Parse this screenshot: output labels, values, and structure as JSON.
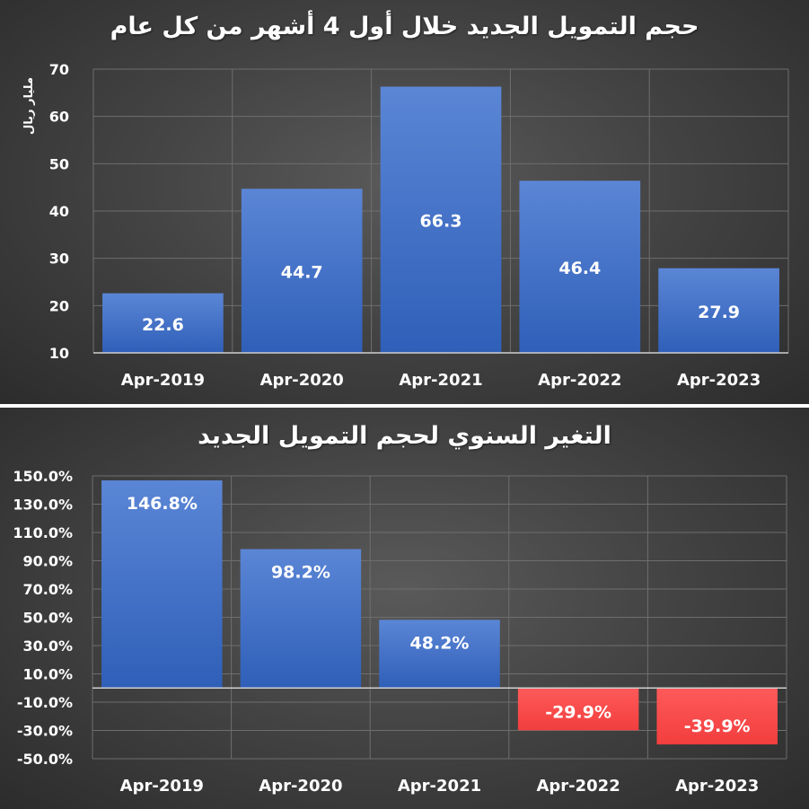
{
  "chart_data": [
    {
      "type": "bar",
      "title": "حجم التمويل الجديد خلال أول 4 أشهر من كل عام",
      "ylabel": "مليار ريال",
      "xlabel": "",
      "categories": [
        "Apr-2019",
        "Apr-2020",
        "Apr-2021",
        "Apr-2022",
        "Apr-2023"
      ],
      "values": [
        22.6,
        44.7,
        66.3,
        46.4,
        27.9
      ],
      "value_labels": [
        "22.6",
        "44.7",
        "66.3",
        "46.4",
        "27.9"
      ],
      "ylim": [
        10,
        70
      ],
      "yticks": [
        "10",
        "20",
        "30",
        "40",
        "50",
        "60",
        "70"
      ],
      "grid": true,
      "bar_color": "#4472C4"
    },
    {
      "type": "bar",
      "title": "التغير السنوي لحجم التمويل الجديد",
      "xlabel": "",
      "ylabel": "",
      "categories": [
        "Apr-2019",
        "Apr-2020",
        "Apr-2021",
        "Apr-2022",
        "Apr-2023"
      ],
      "values": [
        146.8,
        98.2,
        48.2,
        -29.9,
        -39.9
      ],
      "value_labels": [
        "146.8%",
        "98.2%",
        "48.2%",
        "-29.9%",
        "-39.9%"
      ],
      "ylim": [
        -50,
        150
      ],
      "yticks": [
        "150.0%",
        "130.0%",
        "110.0%",
        "90.0%",
        "70.0%",
        "50.0%",
        "30.0%",
        "10.0%",
        "-10.0%",
        "-30.0%",
        "-50.0%"
      ],
      "grid": true,
      "positive_color": "#4472C4",
      "negative_color": "#FF4B4B"
    }
  ]
}
